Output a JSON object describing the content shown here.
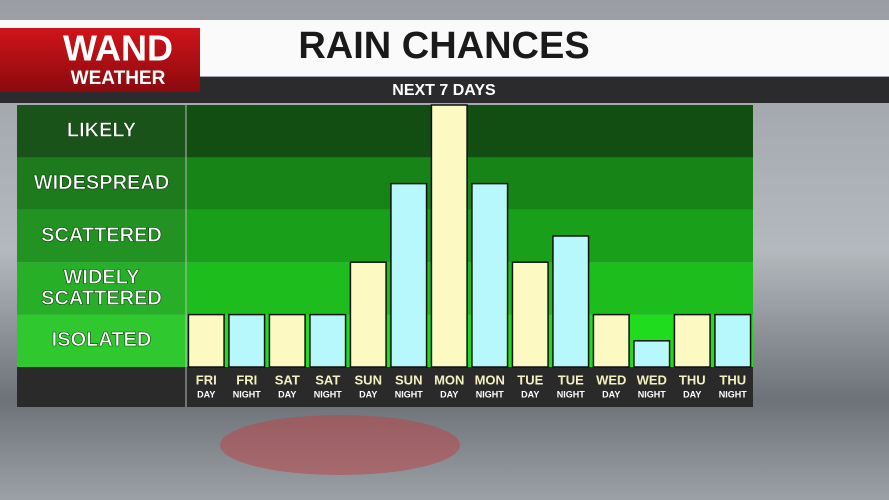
{
  "logo": {
    "line1": "WAND",
    "line2": "WEATHER"
  },
  "chart_data": {
    "type": "bar",
    "title": "RAIN CHANCES",
    "subtitle": "NEXT 7 DAYS",
    "categories": [
      [
        "FRI",
        "DAY"
      ],
      [
        "FRI",
        "NIGHT"
      ],
      [
        "SAT",
        "DAY"
      ],
      [
        "SAT",
        "NIGHT"
      ],
      [
        "SUN",
        "DAY"
      ],
      [
        "SUN",
        "NIGHT"
      ],
      [
        "MON",
        "DAY"
      ],
      [
        "MON",
        "NIGHT"
      ],
      [
        "TUE",
        "DAY"
      ],
      [
        "TUE",
        "NIGHT"
      ],
      [
        "WED",
        "DAY"
      ],
      [
        "WED",
        "NIGHT"
      ],
      [
        "THU",
        "DAY"
      ],
      [
        "THU",
        "NIGHT"
      ]
    ],
    "values": [
      1,
      1,
      1,
      1,
      2,
      3.5,
      5,
      3.5,
      2,
      2.5,
      1,
      0.5,
      1,
      1
    ],
    "colors": [
      "#fcf9c2",
      "#b6f8fb"
    ],
    "ylim": [
      0,
      5
    ],
    "yticks": [
      {
        "value": 0.5,
        "label": "ISOLATED"
      },
      {
        "value": 1.5,
        "label": "WIDELY SCATTERED"
      },
      {
        "value": 2.5,
        "label": "SCATTERED"
      },
      {
        "value": 3.5,
        "label": "WIDESPREAD"
      },
      {
        "value": 4.5,
        "label": "LIKELY"
      }
    ]
  }
}
